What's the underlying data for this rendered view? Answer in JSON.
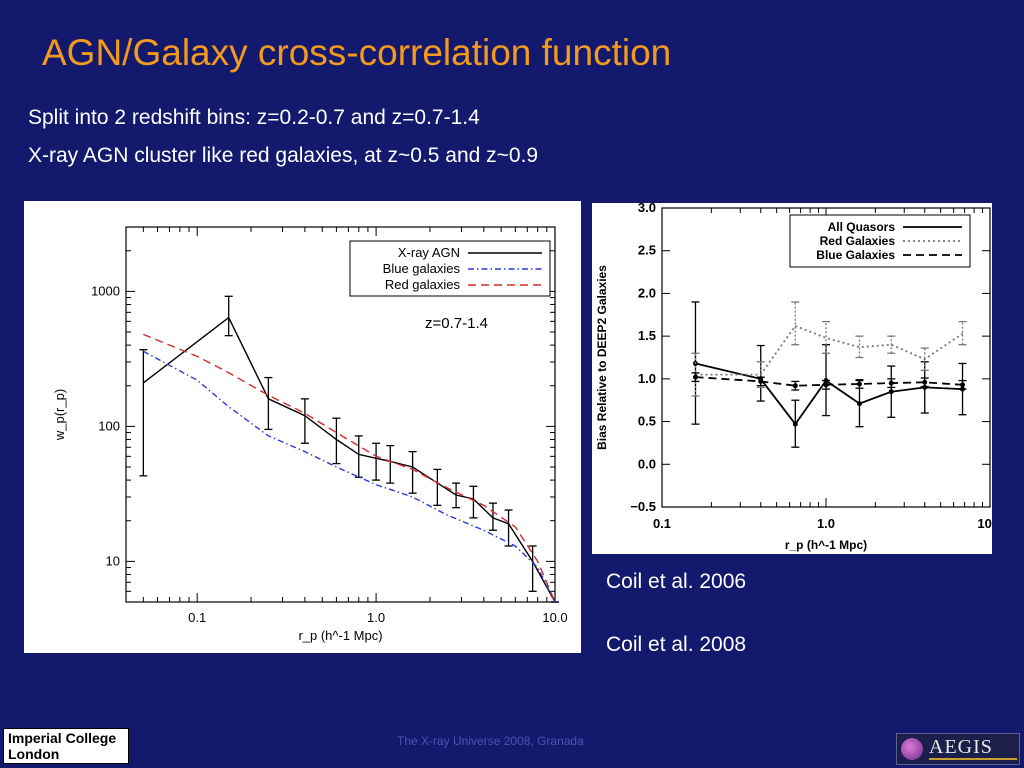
{
  "slide": {
    "title": "AGN/Galaxy cross-correlation function",
    "line1": "Split into 2 redshift bins:  z=0.2-0.7 and z=0.7-1.4",
    "line2": "X-ray AGN cluster like red galaxies, at z~0.5 and z~0.9",
    "caption1": "Coil et al. 2006",
    "caption2": "Coil et al. 2008",
    "footer": "The X-ray Universe 2008, Granada",
    "logo_left": [
      "Imperial College",
      "London"
    ],
    "logo_right": "AEGIS"
  },
  "chart_data": [
    {
      "type": "line",
      "xscale": "log",
      "yscale": "log",
      "xlim": [
        0.04,
        10.0
      ],
      "ylim": [
        5,
        3000
      ],
      "xticks": [
        0.1,
        1.0,
        10.0
      ],
      "xtick_labels": [
        "0.1",
        "1.0",
        "10.0"
      ],
      "yticks": [
        10,
        100,
        1000
      ],
      "ytick_labels": [
        "10",
        "100",
        "1000"
      ],
      "xlabel": "r_p (h^-1 Mpc)",
      "ylabel": "w_p(r_p)",
      "annotation": "z=0.7-1.4",
      "legend_position": "top-right",
      "series": [
        {
          "name": "X-ray AGN",
          "style": "solid",
          "color": "#000000",
          "x": [
            0.05,
            0.15,
            0.25,
            0.4,
            0.6,
            0.8,
            1.0,
            1.2,
            1.6,
            2.2,
            2.8,
            3.5,
            4.5,
            5.5,
            7.5,
            10.0
          ],
          "y": [
            210,
            640,
            160,
            120,
            80,
            62,
            58,
            55,
            50,
            38,
            31,
            29,
            21,
            19,
            10,
            5
          ],
          "yerr_low": [
            43,
            470,
            95,
            75,
            53,
            42,
            40,
            38,
            32,
            26,
            25,
            21,
            17,
            13,
            6,
            5
          ],
          "yerr_high": [
            370,
            920,
            230,
            160,
            115,
            85,
            75,
            72,
            65,
            48,
            38,
            36,
            27,
            24,
            13,
            5
          ]
        },
        {
          "name": "Blue galaxies",
          "style": "dashdot",
          "color": "#2a3bd6",
          "x": [
            0.05,
            0.1,
            0.15,
            0.25,
            0.4,
            0.6,
            1.0,
            1.6,
            2.5,
            4.0,
            6.0,
            8.0,
            10.0
          ],
          "y": [
            360,
            220,
            140,
            85,
            65,
            50,
            37,
            30,
            22,
            17,
            13,
            9,
            5
          ]
        },
        {
          "name": "Red galaxies",
          "style": "dashed",
          "color": "#d62a2a",
          "x": [
            0.05,
            0.1,
            0.15,
            0.25,
            0.4,
            0.6,
            1.0,
            1.6,
            2.5,
            4.0,
            6.0,
            8.0,
            10.0
          ],
          "y": [
            480,
            330,
            250,
            170,
            125,
            90,
            60,
            48,
            35,
            26,
            18,
            10,
            5
          ]
        }
      ]
    },
    {
      "type": "line",
      "xscale": "log",
      "yscale": "linear",
      "xlim": [
        0.1,
        10.0
      ],
      "ylim": [
        -0.5,
        3.0
      ],
      "xticks": [
        0.1,
        1.0,
        10.0
      ],
      "xtick_labels": [
        "0.1",
        "1.0",
        "10.0"
      ],
      "yticks": [
        -0.5,
        0.0,
        0.5,
        1.0,
        1.5,
        2.0,
        2.5,
        3.0
      ],
      "ytick_labels": [
        "−0.5",
        "0.0",
        "0.5",
        "1.0",
        "1.5",
        "2.0",
        "2.5",
        "3.0"
      ],
      "xlabel": "r_p (h^-1 Mpc)",
      "ylabel": "Bias Relative to DEEP2 Galaxies",
      "legend_position": "top-right",
      "series": [
        {
          "name": "All Quasors",
          "style": "solid",
          "color": "#000000",
          "x": [
            0.16,
            0.4,
            0.65,
            1.0,
            1.6,
            2.5,
            4.0,
            6.8
          ],
          "y": [
            1.18,
            1.0,
            0.47,
            0.98,
            0.71,
            0.85,
            0.9,
            0.88
          ],
          "yerr_low": [
            0.47,
            0.74,
            0.2,
            0.57,
            0.44,
            0.55,
            0.6,
            0.58
          ],
          "yerr_high": [
            1.9,
            1.39,
            0.75,
            1.4,
            0.98,
            1.15,
            1.2,
            1.18
          ]
        },
        {
          "name": "Red Galaxies",
          "style": "dotted",
          "color": "#777777",
          "x": [
            0.16,
            0.4,
            0.65,
            1.0,
            1.6,
            2.5,
            4.0,
            6.8
          ],
          "y": [
            1.05,
            1.05,
            1.62,
            1.48,
            1.37,
            1.4,
            1.23,
            1.53
          ],
          "yerr_low": [
            0.8,
            0.9,
            1.4,
            1.3,
            1.25,
            1.3,
            1.1,
            1.4
          ],
          "yerr_high": [
            1.3,
            1.2,
            1.9,
            1.67,
            1.5,
            1.5,
            1.36,
            1.67
          ]
        },
        {
          "name": "Blue Galaxies",
          "style": "dashed",
          "color": "#000000",
          "x": [
            0.16,
            0.4,
            0.65,
            1.0,
            1.6,
            2.5,
            4.0,
            6.8
          ],
          "y": [
            1.02,
            0.97,
            0.92,
            0.93,
            0.94,
            0.95,
            0.96,
            0.93
          ],
          "yerr_low": [
            0.97,
            0.92,
            0.87,
            0.88,
            0.89,
            0.9,
            0.91,
            0.88
          ],
          "yerr_high": [
            1.07,
            1.02,
            0.97,
            0.98,
            0.99,
            1.0,
            1.01,
            0.98
          ]
        }
      ]
    }
  ]
}
